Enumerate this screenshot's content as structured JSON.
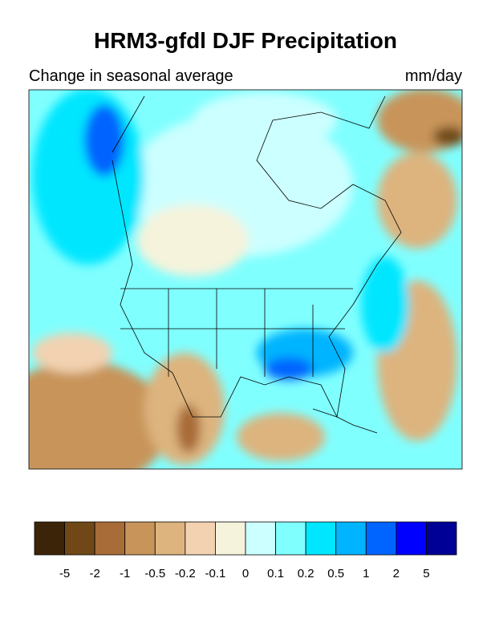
{
  "title": "HRM3-gfdl DJF Precipitation",
  "subtitle": "Change in seasonal average",
  "units": "mm/day",
  "colorbar": {
    "colors": [
      "#3b2408",
      "#704818",
      "#a86c38",
      "#c8945a",
      "#ddb47e",
      "#f2d2b0",
      "#f5f3dc",
      "#ccffff",
      "#80ffff",
      "#00e6ff",
      "#00b4ff",
      "#0064ff",
      "#0000ff",
      "#000096"
    ],
    "ticks": [
      -5,
      -2,
      -1,
      -0.5,
      -0.2,
      -0.1,
      0,
      0.1,
      0.2,
      0.5,
      1,
      2,
      5
    ]
  }
}
